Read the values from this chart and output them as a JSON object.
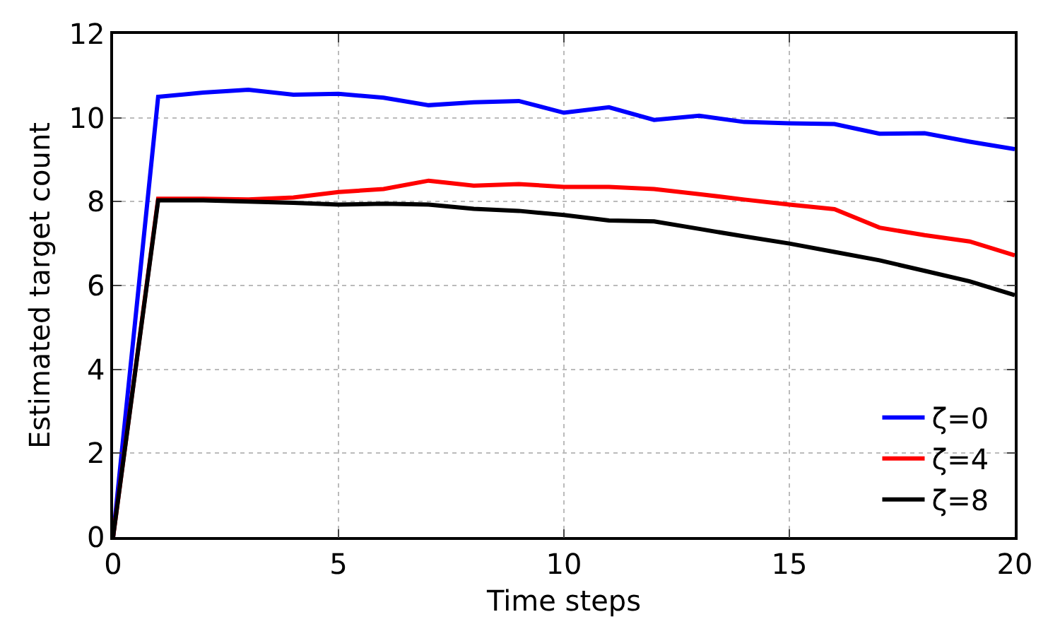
{
  "chart_data": {
    "type": "line",
    "xlabel": "Time steps",
    "ylabel": "Estimated target count",
    "x": [
      0,
      1,
      2,
      3,
      4,
      5,
      6,
      7,
      8,
      9,
      10,
      11,
      12,
      13,
      14,
      15,
      16,
      17,
      18,
      19,
      20
    ],
    "series": [
      {
        "name": "ζ=0",
        "color": "#0000ff",
        "values": [
          0,
          10.5,
          10.6,
          10.67,
          10.55,
          10.57,
          10.48,
          10.3,
          10.37,
          10.4,
          10.12,
          10.25,
          9.95,
          10.05,
          9.9,
          9.87,
          9.85,
          9.62,
          9.63,
          9.43,
          9.25
        ]
      },
      {
        "name": "ζ=4",
        "color": "#ff0000",
        "values": [
          0,
          8.07,
          8.07,
          8.05,
          8.1,
          8.23,
          8.3,
          8.5,
          8.38,
          8.42,
          8.35,
          8.35,
          8.3,
          8.18,
          8.05,
          7.93,
          7.82,
          7.38,
          7.2,
          7.05,
          6.72
        ]
      },
      {
        "name": "ζ=8",
        "color": "#000000",
        "values": [
          0,
          8.03,
          8.03,
          8.0,
          7.97,
          7.93,
          7.95,
          7.93,
          7.83,
          7.78,
          7.68,
          7.55,
          7.53,
          7.35,
          7.17,
          7.0,
          6.8,
          6.6,
          6.35,
          6.1,
          5.77
        ]
      }
    ],
    "xlim": [
      0,
      20
    ],
    "xticks": [
      0,
      5,
      10,
      15,
      20
    ],
    "ylim": [
      0,
      12
    ],
    "yticks": [
      0,
      2,
      4,
      6,
      8,
      10,
      12
    ],
    "grid": true,
    "legend": "bottom right",
    "marker": "none",
    "line_style": "solid"
  }
}
